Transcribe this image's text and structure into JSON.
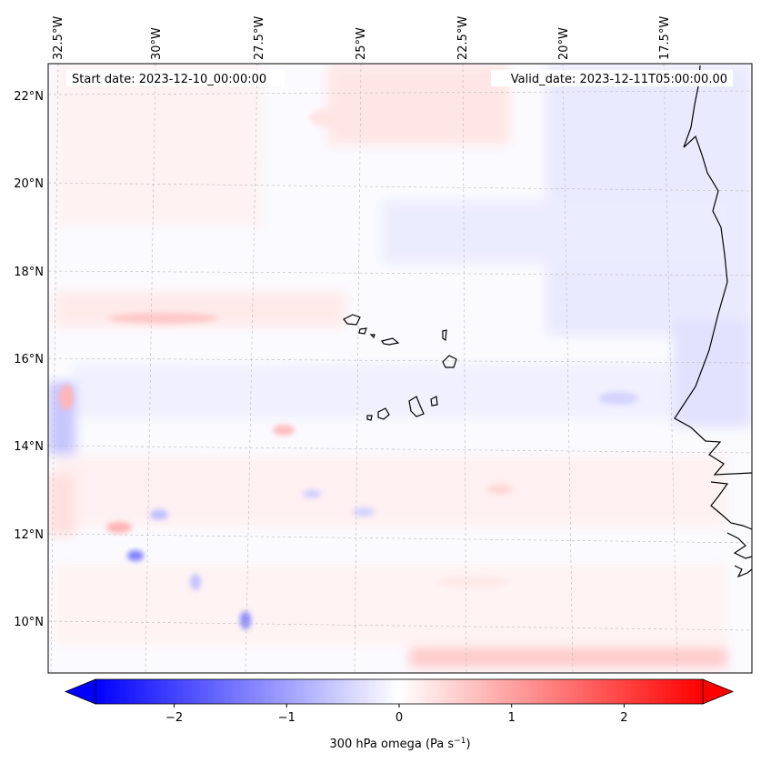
{
  "map": {
    "start_date_label": "Start date: 2023-12-10_00:00:00",
    "valid_date_label": "Valid_date: 2023-12-11T05:00:00.00",
    "lon_labels": [
      "32.5°W",
      "30°W",
      "27.5°W",
      "25°W",
      "22.5°W",
      "20°W",
      "17.5°W"
    ],
    "lat_labels": [
      "22°N",
      "20°N",
      "18°N",
      "16°N",
      "14°N",
      "12°N",
      "10°N"
    ],
    "field": "300 hPa omega",
    "region": "Eastern tropical North Atlantic, Cape Verde Islands and West African coast"
  },
  "colorbar": {
    "label": "300 hPa omega (Pa s",
    "label_sup": "−1",
    "label_close": ")",
    "tick_labels": [
      "−2",
      "−1",
      "0",
      "1",
      "2"
    ],
    "tick_values": [
      -2,
      -1,
      0,
      1,
      2
    ],
    "vmin": -2.7,
    "vmax": 2.7,
    "colormap": "bwr",
    "low_color": "#0000ff",
    "mid_color": "#ffffff",
    "high_color": "#ff0000",
    "extend": "both"
  }
}
